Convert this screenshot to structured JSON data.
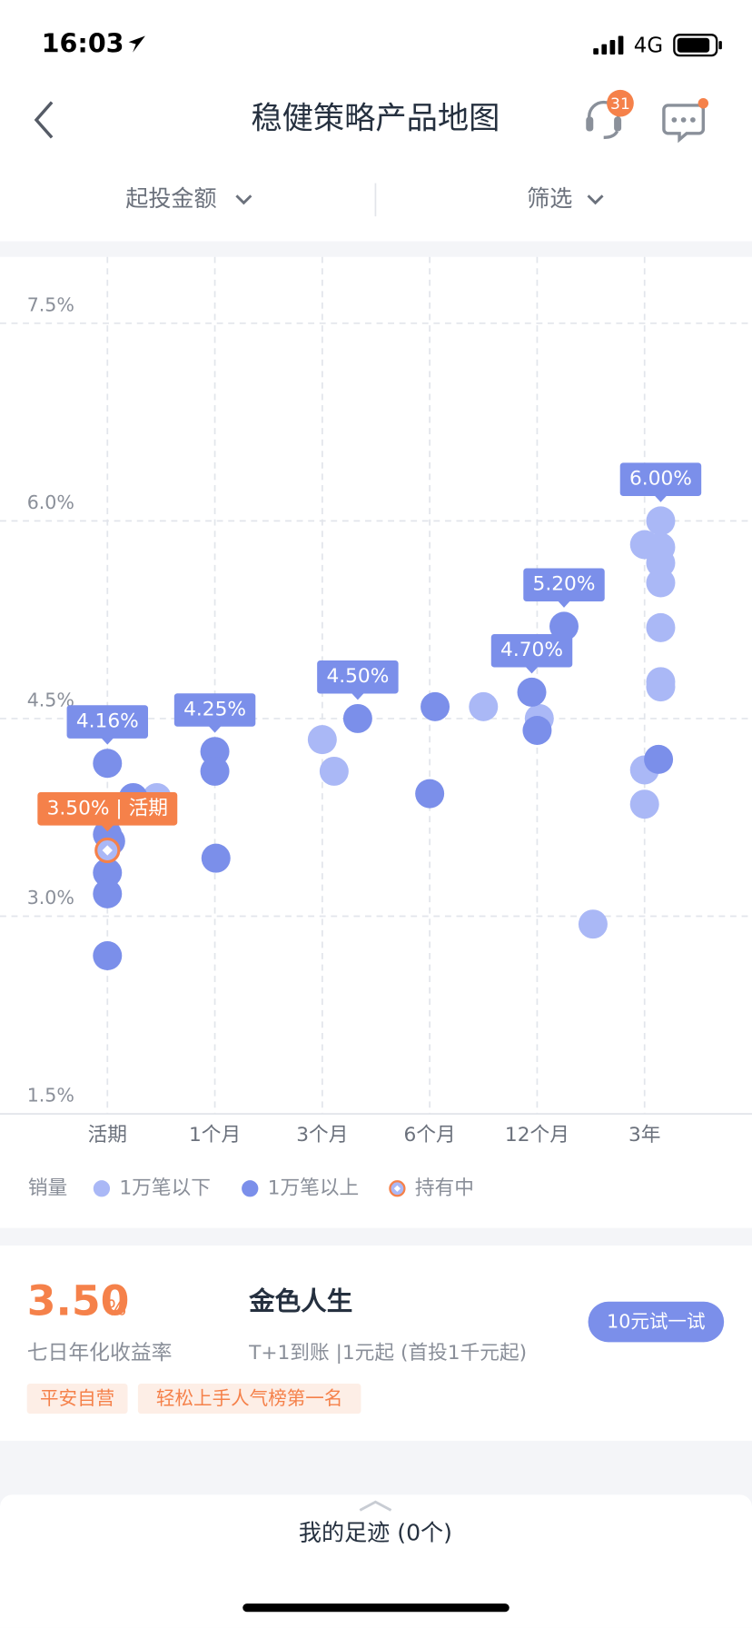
{
  "status_bar": {
    "time": "16:03",
    "network": "4G"
  },
  "nav": {
    "title": "稳健策略产品地图",
    "badge": 31
  },
  "filters": [
    "起投金额",
    "筛选"
  ],
  "chart_data": {
    "type": "scatter",
    "legend_title": "销量",
    "xlim": [
      -1,
      6
    ],
    "xticks": [
      {
        "value": 0,
        "label": "活期"
      },
      {
        "value": 1,
        "label": "1个月"
      },
      {
        "value": 2,
        "label": "3个月"
      },
      {
        "value": 3,
        "label": "6个月"
      },
      {
        "value": 4,
        "label": "12个月"
      },
      {
        "value": 5,
        "label": "3年"
      }
    ],
    "ylim": [
      1.5,
      7.5
    ],
    "yticks": [
      {
        "value": 1.5,
        "label": "1.5%"
      },
      {
        "value": 3.0,
        "label": "3.0%"
      },
      {
        "value": 4.5,
        "label": "4.5%"
      },
      {
        "value": 6.0,
        "label": "6.0%"
      },
      {
        "value": 7.5,
        "label": "7.5%"
      }
    ],
    "grid": true,
    "series": [
      {
        "name": "1万笔以下",
        "color": "#aab8f6",
        "marker": "circle",
        "x": [
          0.46,
          2.0,
          2.11,
          3.5,
          4.02,
          4.52,
          5.15,
          5.0,
          5.15,
          5.15,
          5.15,
          5.15,
          5.15,
          5.15,
          5.0,
          5.0
        ],
        "values": [
          3.9,
          4.34,
          4.1,
          4.59,
          4.5,
          2.94,
          6.0,
          5.82,
          5.8,
          5.68,
          5.53,
          5.19,
          4.78,
          4.74,
          4.11,
          3.85
        ]
      },
      {
        "name": "1万笔以上",
        "color": "#7b8fea",
        "marker": "circle",
        "x": [
          0,
          0.24,
          0,
          0.03,
          0,
          0,
          0,
          1.0,
          1.0,
          1.01,
          2.33,
          3.05,
          3.0,
          3.95,
          4.0,
          4.25,
          5.13
        ],
        "values": [
          4.16,
          3.9,
          3.62,
          3.57,
          3.33,
          3.17,
          2.7,
          4.25,
          4.1,
          3.44,
          4.5,
          4.59,
          3.93,
          4.7,
          4.41,
          5.2,
          4.19
        ]
      },
      {
        "name": "持有中",
        "color": "#aab8f6",
        "marker": "ring-diamond",
        "x": [
          0
        ],
        "values": [
          3.5
        ]
      }
    ],
    "annotations": [
      {
        "text": "4.16%",
        "x": 0,
        "y": 4.16,
        "color": "#7b8fea"
      },
      {
        "text": "4.25%",
        "x": 1.0,
        "y": 4.25,
        "color": "#7b8fea"
      },
      {
        "text": "4.50%",
        "x": 2.33,
        "y": 4.5,
        "color": "#7b8fea"
      },
      {
        "text": "4.70%",
        "x": 3.95,
        "y": 4.7,
        "color": "#7b8fea"
      },
      {
        "text": "5.20%",
        "x": 4.25,
        "y": 5.2,
        "color": "#7b8fea"
      },
      {
        "text": "6.00%",
        "x": 5.15,
        "y": 6.0,
        "color": "#7b8fea"
      },
      {
        "text": "3.50% | 活期",
        "x": 0,
        "y": 3.5,
        "color": "#f5814a"
      }
    ]
  },
  "product": {
    "rate": "3.50",
    "rate_unit": "%",
    "rate_label": "七日年化收益率",
    "name": "金色人生",
    "desc": "T+1到账 |1元起 (首投1千元起)",
    "button": "10元试一试",
    "tags": [
      "平安自营",
      "轻松上手人气榜第一名"
    ]
  },
  "footer": "我的足迹 (0个)"
}
